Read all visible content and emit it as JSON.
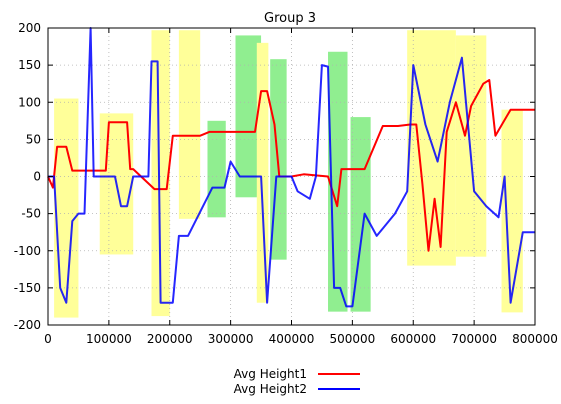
{
  "chart_data": {
    "type": "line",
    "title": "Group 3",
    "xlabel": "",
    "ylabel": "",
    "xlim": [
      0,
      800000
    ],
    "ylim": [
      -200,
      200
    ],
    "x_ticks": [
      0,
      100000,
      200000,
      300000,
      400000,
      500000,
      600000,
      700000,
      800000
    ],
    "y_ticks": [
      -200,
      -150,
      -100,
      -50,
      0,
      50,
      100,
      150,
      200
    ],
    "grid": true,
    "legend_position": "bottom-center",
    "colors": {
      "series1": "#ff0000",
      "series2": "#0000ff",
      "overlap": "#7a7ab8",
      "mixed": "#ff8c00",
      "highlight_yellow": "#ffff99",
      "highlight_green": "#90ee90"
    },
    "highlight_regions": [
      {
        "color": "yellow",
        "x": [
          10000,
          50000
        ],
        "y": [
          -190,
          105
        ]
      },
      {
        "color": "yellow",
        "x": [
          85000,
          140000
        ],
        "y": [
          -105,
          85
        ]
      },
      {
        "color": "yellow",
        "x": [
          170000,
          200000
        ],
        "y": [
          -188,
          197
        ]
      },
      {
        "color": "yellow",
        "x": [
          215000,
          250000
        ],
        "y": [
          -57,
          197
        ]
      },
      {
        "color": "green",
        "x": [
          262000,
          292000
        ],
        "y": [
          -55,
          75
        ]
      },
      {
        "color": "green",
        "x": [
          308000,
          350000
        ],
        "y": [
          -28,
          190
        ]
      },
      {
        "color": "yellow",
        "x": [
          343000,
          362000
        ],
        "y": [
          -170,
          180
        ]
      },
      {
        "color": "green",
        "x": [
          365000,
          392000
        ],
        "y": [
          -112,
          158
        ]
      },
      {
        "color": "green",
        "x": [
          460000,
          492000
        ],
        "y": [
          -182,
          168
        ]
      },
      {
        "color": "green",
        "x": [
          497000,
          530000
        ],
        "y": [
          -182,
          80
        ]
      },
      {
        "color": "yellow",
        "x": [
          590000,
          670000
        ],
        "y": [
          -120,
          197
        ]
      },
      {
        "color": "yellow",
        "x": [
          670000,
          720000
        ],
        "y": [
          -108,
          190
        ]
      },
      {
        "color": "yellow",
        "x": [
          745000,
          780000
        ],
        "y": [
          -183,
          90
        ]
      }
    ],
    "series": [
      {
        "name": "Avg Height1",
        "color": "#ff0000",
        "x": [
          0,
          8000,
          15000,
          30000,
          40000,
          80000,
          95000,
          100000,
          130000,
          135000,
          140000,
          175000,
          180000,
          195000,
          205000,
          240000,
          250000,
          265000,
          280000,
          300000,
          325000,
          340000,
          350000,
          360000,
          372000,
          380000,
          400000,
          420000,
          460000,
          475000,
          482000,
          500000,
          515000,
          520000,
          550000,
          575000,
          595000,
          605000,
          615000,
          625000,
          635000,
          645000,
          655000,
          670000,
          685000,
          695000,
          715000,
          725000,
          735000,
          760000,
          800000
        ],
        "y": [
          0,
          -15,
          40,
          40,
          8,
          8,
          8,
          73,
          73,
          10,
          10,
          -17,
          -17,
          -17,
          55,
          55,
          55,
          60,
          60,
          60,
          60,
          60,
          115,
          115,
          70,
          0,
          0,
          3,
          0,
          -40,
          10,
          10,
          10,
          10,
          68,
          68,
          70,
          70,
          -10,
          -100,
          -30,
          -95,
          60,
          100,
          55,
          95,
          125,
          130,
          55,
          90,
          90
        ]
      },
      {
        "name": "Avg Height2",
        "color": "#0000ff",
        "x": [
          0,
          10000,
          20000,
          30000,
          40000,
          50000,
          60000,
          70000,
          75000,
          85000,
          100000,
          110000,
          120000,
          130000,
          140000,
          165000,
          170000,
          180000,
          185000,
          205000,
          215000,
          230000,
          270000,
          290000,
          300000,
          315000,
          330000,
          350000,
          360000,
          375000,
          390000,
          400000,
          410000,
          430000,
          440000,
          450000,
          460000,
          470000,
          480000,
          490000,
          500000,
          520000,
          540000,
          570000,
          590000,
          600000,
          620000,
          640000,
          660000,
          680000,
          700000,
          720000,
          740000,
          750000,
          760000,
          780000,
          800000
        ],
        "y": [
          0,
          0,
          -150,
          -170,
          -60,
          -50,
          -50,
          200,
          0,
          0,
          0,
          0,
          -40,
          -40,
          0,
          0,
          155,
          155,
          -170,
          -170,
          -80,
          -80,
          -15,
          -15,
          20,
          0,
          0,
          0,
          -170,
          0,
          0,
          0,
          -20,
          -30,
          0,
          150,
          148,
          -150,
          -150,
          -175,
          -175,
          -50,
          -80,
          -50,
          -20,
          150,
          70,
          20,
          100,
          160,
          -20,
          -40,
          -55,
          0,
          -170,
          -75,
          -75
        ]
      }
    ],
    "legend": [
      "Avg Height1",
      "Avg Height2"
    ]
  }
}
